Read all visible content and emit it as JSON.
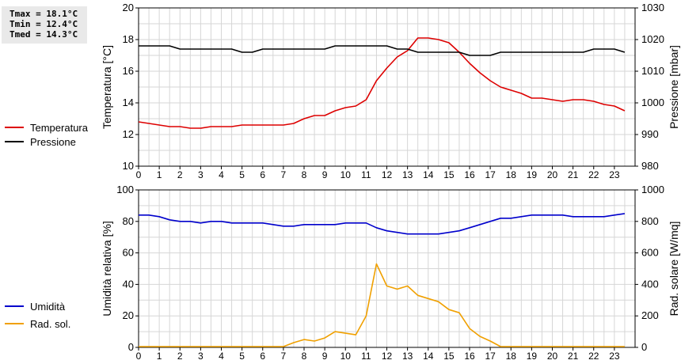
{
  "stats": {
    "tmax": "Tmax = 18.1°C",
    "tmin": "Tmin = 12.4°C",
    "tmed": "Tmed = 14.3°C"
  },
  "chart_data": [
    {
      "type": "line",
      "xlabel": "",
      "xlim": [
        0,
        24
      ],
      "x_ticks": [
        "0",
        "1",
        "2",
        "3",
        "4",
        "5",
        "6",
        "7",
        "8",
        "9",
        "10",
        "11",
        "12",
        "13",
        "14",
        "15",
        "16",
        "17",
        "18",
        "19",
        "20",
        "21",
        "22",
        "23"
      ],
      "ylabel": "Temperatura [°C]",
      "ylim": [
        10,
        20
      ],
      "y_ticks": [
        10,
        12,
        14,
        16,
        18,
        20
      ],
      "y2label": "Pressione [mbar]",
      "y2lim": [
        980,
        1030
      ],
      "y2_ticks": [
        980,
        990,
        1000,
        1010,
        1020,
        1030
      ],
      "grid": true,
      "legend_position": "left",
      "series": [
        {
          "name": "Temperatura",
          "color": "#dd0000",
          "axis": "left",
          "x": [
            0,
            0.5,
            1,
            1.5,
            2,
            2.5,
            3,
            3.5,
            4,
            4.5,
            5,
            5.5,
            6,
            6.5,
            7,
            7.5,
            8,
            8.5,
            9,
            9.5,
            10,
            10.5,
            11,
            11.5,
            12,
            12.5,
            13,
            13.5,
            14,
            14.5,
            15,
            15.5,
            16,
            16.5,
            17,
            17.5,
            18,
            18.5,
            19,
            19.5,
            20,
            20.5,
            21,
            21.5,
            22,
            22.5,
            23,
            23.5
          ],
          "y": [
            12.8,
            12.7,
            12.6,
            12.5,
            12.5,
            12.4,
            12.4,
            12.5,
            12.5,
            12.5,
            12.6,
            12.6,
            12.6,
            12.6,
            12.6,
            12.7,
            13.0,
            13.2,
            13.2,
            13.5,
            13.7,
            13.8,
            14.2,
            15.4,
            16.2,
            16.9,
            17.3,
            18.1,
            18.1,
            18.0,
            17.8,
            17.2,
            16.5,
            15.9,
            15.4,
            15.0,
            14.8,
            14.6,
            14.3,
            14.3,
            14.2,
            14.1,
            14.2,
            14.2,
            14.1,
            13.9,
            13.8,
            13.5
          ]
        },
        {
          "name": "Pressione",
          "color": "#000000",
          "axis": "right",
          "x": [
            0,
            0.5,
            1,
            1.5,
            2,
            2.5,
            3,
            3.5,
            4,
            4.5,
            5,
            5.5,
            6,
            6.5,
            7,
            7.5,
            8,
            8.5,
            9,
            9.5,
            10,
            10.5,
            11,
            11.5,
            12,
            12.5,
            13,
            13.5,
            14,
            14.5,
            15,
            15.5,
            16,
            16.5,
            17,
            17.5,
            18,
            18.5,
            19,
            19.5,
            20,
            20.5,
            21,
            21.5,
            22,
            22.5,
            23,
            23.5
          ],
          "y": [
            1018,
            1018,
            1018,
            1018,
            1017,
            1017,
            1017,
            1017,
            1017,
            1017,
            1016,
            1016,
            1017,
            1017,
            1017,
            1017,
            1017,
            1017,
            1017,
            1018,
            1018,
            1018,
            1018,
            1018,
            1018,
            1017,
            1017,
            1016,
            1016,
            1016,
            1016,
            1016,
            1015,
            1015,
            1015,
            1016,
            1016,
            1016,
            1016,
            1016,
            1016,
            1016,
            1016,
            1016,
            1017,
            1017,
            1017,
            1016
          ]
        }
      ]
    },
    {
      "type": "line",
      "xlabel": "",
      "xlim": [
        0,
        24
      ],
      "x_ticks": [
        "0",
        "1",
        "2",
        "3",
        "4",
        "5",
        "6",
        "7",
        "8",
        "9",
        "10",
        "11",
        "12",
        "13",
        "14",
        "15",
        "16",
        "17",
        "18",
        "19",
        "20",
        "21",
        "22",
        "23"
      ],
      "ylabel": "Umidità relativa [%]",
      "ylim": [
        0,
        100
      ],
      "y_ticks": [
        0,
        20,
        40,
        60,
        80,
        100
      ],
      "y2label": "Rad. solare [W/mq]",
      "y2lim": [
        0,
        1000
      ],
      "y2_ticks": [
        0,
        200,
        400,
        600,
        800,
        1000
      ],
      "grid": true,
      "legend_position": "left",
      "series": [
        {
          "name": "Umidità",
          "color": "#0000cc",
          "axis": "left",
          "x": [
            0,
            0.5,
            1,
            1.5,
            2,
            2.5,
            3,
            3.5,
            4,
            4.5,
            5,
            5.5,
            6,
            6.5,
            7,
            7.5,
            8,
            8.5,
            9,
            9.5,
            10,
            10.5,
            11,
            11.5,
            12,
            12.5,
            13,
            13.5,
            14,
            14.5,
            15,
            15.5,
            16,
            16.5,
            17,
            17.5,
            18,
            18.5,
            19,
            19.5,
            20,
            20.5,
            21,
            21.5,
            22,
            22.5,
            23,
            23.5
          ],
          "y": [
            84,
            84,
            83,
            81,
            80,
            80,
            79,
            80,
            80,
            79,
            79,
            79,
            79,
            78,
            77,
            77,
            78,
            78,
            78,
            78,
            79,
            79,
            79,
            76,
            74,
            73,
            72,
            72,
            72,
            72,
            73,
            74,
            76,
            78,
            80,
            82,
            82,
            83,
            84,
            84,
            84,
            84,
            83,
            83,
            83,
            83,
            84,
            85
          ]
        },
        {
          "name": "Rad. sol.",
          "color": "#f0a000",
          "axis": "right",
          "x": [
            0,
            0.5,
            1,
            1.5,
            2,
            2.5,
            3,
            3.5,
            4,
            4.5,
            5,
            5.5,
            6,
            6.5,
            7,
            7.5,
            8,
            8.5,
            9,
            9.5,
            10,
            10.5,
            11,
            11.5,
            12,
            12.5,
            13,
            13.5,
            14,
            14.5,
            15,
            15.5,
            16,
            16.5,
            17,
            17.5,
            18,
            18.5,
            19,
            19.5,
            20,
            20.5,
            21,
            21.5,
            22,
            22.5,
            23,
            23.5
          ],
          "y": [
            5,
            5,
            5,
            5,
            5,
            5,
            5,
            5,
            5,
            5,
            5,
            5,
            5,
            5,
            5,
            30,
            50,
            40,
            60,
            100,
            90,
            80,
            200,
            530,
            390,
            370,
            390,
            330,
            310,
            290,
            240,
            220,
            120,
            70,
            40,
            5,
            5,
            5,
            5,
            5,
            5,
            5,
            5,
            5,
            5,
            5,
            5,
            5
          ]
        }
      ]
    }
  ]
}
